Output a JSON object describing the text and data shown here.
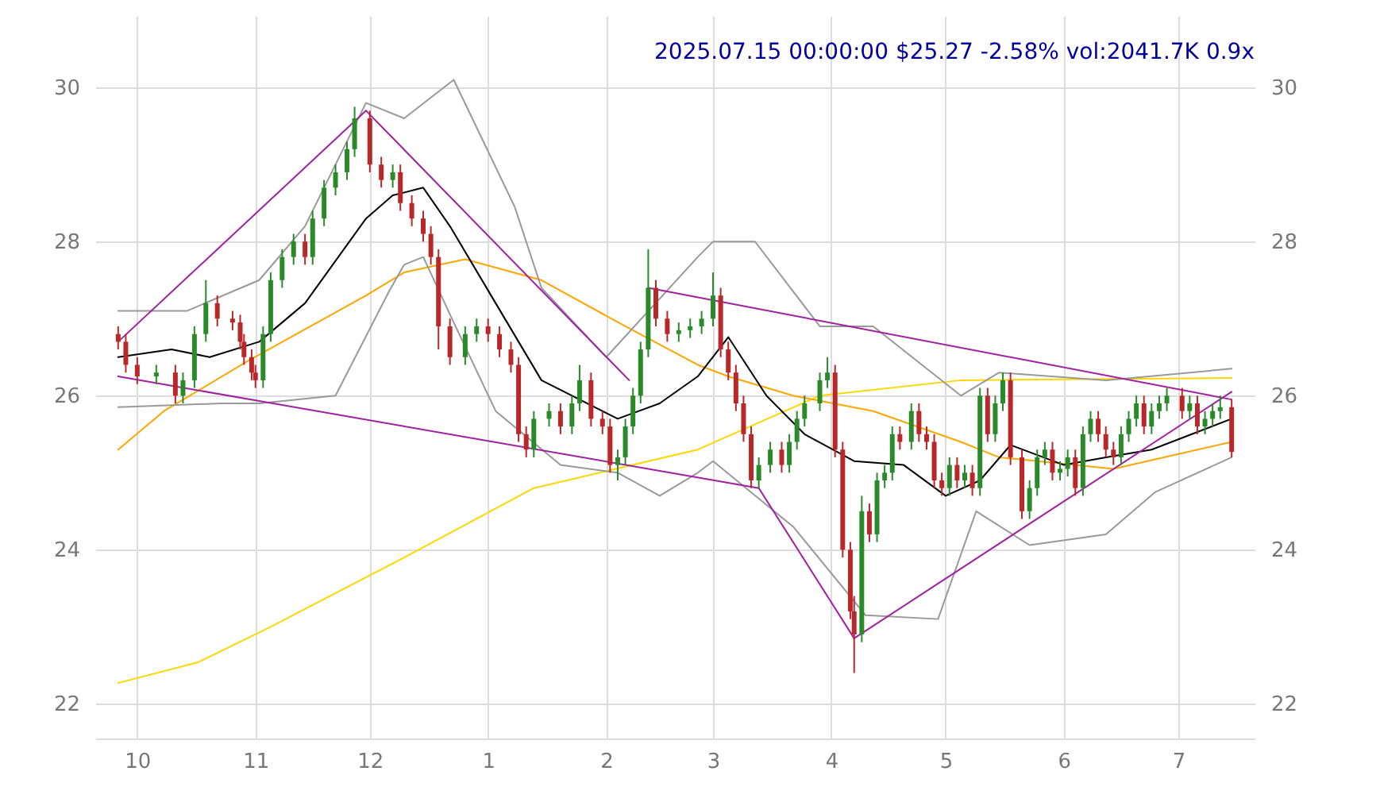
{
  "chart_data": {
    "type": "candlestick",
    "title": "2025.07.15 00:00:00 $25.27 -2.58% vol:2041.7K 0.9x",
    "x": [
      "2024-09-26",
      "2024-09-28",
      "2024-10-01",
      "2024-10-06",
      "2024-10-11",
      "2024-10-13",
      "2024-10-16",
      "2024-10-19",
      "2024-10-22",
      "2024-10-26",
      "2024-10-28",
      "2024-10-29",
      "2024-10-31",
      "2024-11-01",
      "2024-11-03",
      "2024-11-05",
      "2024-11-08",
      "2024-11-11",
      "2024-11-14",
      "2024-11-16",
      "2024-11-19",
      "2024-11-22",
      "2024-11-25",
      "2024-11-27",
      "2024-12-01",
      "2024-12-04",
      "2024-12-07",
      "2024-12-09",
      "2024-12-12",
      "2024-12-15",
      "2024-12-17",
      "2024-12-19",
      "2024-12-22",
      "2024-12-26",
      "2024-12-29",
      "2025-01-01",
      "2025-01-04",
      "2025-01-07",
      "2025-01-09",
      "2025-01-11",
      "2025-01-13",
      "2025-01-17",
      "2025-01-20",
      "2025-01-23",
      "2025-01-25",
      "2025-01-28",
      "2025-01-31",
      "2025-02-02",
      "2025-02-04",
      "2025-02-06",
      "2025-02-08",
      "2025-02-10",
      "2025-02-12",
      "2025-02-14",
      "2025-02-17",
      "2025-02-20",
      "2025-02-23",
      "2025-02-26",
      "2025-03-01",
      "2025-03-03",
      "2025-03-05",
      "2025-03-07",
      "2025-03-09",
      "2025-03-11",
      "2025-03-13",
      "2025-03-16",
      "2025-03-19",
      "2025-03-21",
      "2025-03-23",
      "2025-03-25",
      "2025-03-29",
      "2025-03-31",
      "2025-04-02",
      "2025-04-04",
      "2025-04-06",
      "2025-04-07",
      "2025-04-09",
      "2025-04-11",
      "2025-04-13",
      "2025-04-15",
      "2025-04-17",
      "2025-04-19",
      "2025-04-22",
      "2025-04-24",
      "2025-04-26",
      "2025-04-28",
      "2025-04-30",
      "2025-05-02",
      "2025-05-04",
      "2025-05-06",
      "2025-05-08",
      "2025-05-10",
      "2025-05-12",
      "2025-05-14",
      "2025-05-16",
      "2025-05-18",
      "2025-05-21",
      "2025-05-23",
      "2025-05-25",
      "2025-05-27",
      "2025-05-29",
      "2025-05-31",
      "2025-06-02",
      "2025-06-04",
      "2025-06-06",
      "2025-06-08",
      "2025-06-10",
      "2025-06-12",
      "2025-06-14",
      "2025-06-16",
      "2025-06-18",
      "2025-06-20",
      "2025-06-22",
      "2025-06-24",
      "2025-06-26",
      "2025-06-28",
      "2025-07-02",
      "2025-07-04",
      "2025-07-06",
      "2025-07-08",
      "2025-07-10",
      "2025-07-12",
      "2025-07-15"
    ],
    "ohlc": [
      [
        26.8,
        26.9,
        26.6,
        26.7
      ],
      [
        26.7,
        26.8,
        26.3,
        26.4
      ],
      [
        26.4,
        26.5,
        26.15,
        26.25
      ],
      [
        26.25,
        26.4,
        26.15,
        26.3
      ],
      [
        26.3,
        26.4,
        25.9,
        26.0
      ],
      [
        26.0,
        26.3,
        25.9,
        26.2
      ],
      [
        26.2,
        26.9,
        26.1,
        26.8
      ],
      [
        26.8,
        27.5,
        26.7,
        27.2
      ],
      [
        27.2,
        27.3,
        26.9,
        27.0
      ],
      [
        27.0,
        27.1,
        26.85,
        26.95
      ],
      [
        26.95,
        27.05,
        26.6,
        26.7
      ],
      [
        26.7,
        26.8,
        26.4,
        26.5
      ],
      [
        26.5,
        26.6,
        26.2,
        26.3
      ],
      [
        26.3,
        26.4,
        26.1,
        26.2
      ],
      [
        26.2,
        26.9,
        26.1,
        26.8
      ],
      [
        26.8,
        27.6,
        26.7,
        27.5
      ],
      [
        27.5,
        27.9,
        27.4,
        27.8
      ],
      [
        27.8,
        28.1,
        27.7,
        28.0
      ],
      [
        28.0,
        28.1,
        27.7,
        27.8
      ],
      [
        27.8,
        28.4,
        27.7,
        28.3
      ],
      [
        28.3,
        28.8,
        28.2,
        28.7
      ],
      [
        28.7,
        29.0,
        28.6,
        28.9
      ],
      [
        28.9,
        29.3,
        28.8,
        29.2
      ],
      [
        29.2,
        29.75,
        29.1,
        29.6
      ],
      [
        29.6,
        29.7,
        28.9,
        29.0
      ],
      [
        29.0,
        29.1,
        28.7,
        28.8
      ],
      [
        28.8,
        29.0,
        28.7,
        28.9
      ],
      [
        28.9,
        29.0,
        28.4,
        28.5
      ],
      [
        28.5,
        28.6,
        28.2,
        28.3
      ],
      [
        28.3,
        28.4,
        28.0,
        28.1
      ],
      [
        28.1,
        28.2,
        27.7,
        27.8
      ],
      [
        27.8,
        27.9,
        26.6,
        26.9
      ],
      [
        26.9,
        27.0,
        26.4,
        26.5
      ],
      [
        26.5,
        26.9,
        26.4,
        26.8
      ],
      [
        26.8,
        27.0,
        26.7,
        26.9
      ],
      [
        26.9,
        27.0,
        26.7,
        26.8
      ],
      [
        26.8,
        26.9,
        26.5,
        26.6
      ],
      [
        26.6,
        26.7,
        26.3,
        26.4
      ],
      [
        26.4,
        26.5,
        25.4,
        25.5
      ],
      [
        25.5,
        25.6,
        25.2,
        25.3
      ],
      [
        25.3,
        25.8,
        25.2,
        25.7
      ],
      [
        25.7,
        25.9,
        25.6,
        25.8
      ],
      [
        25.8,
        25.9,
        25.5,
        25.6
      ],
      [
        25.6,
        26.0,
        25.5,
        25.9
      ],
      [
        25.9,
        26.4,
        25.8,
        26.2
      ],
      [
        26.2,
        26.3,
        25.6,
        25.7
      ],
      [
        25.7,
        25.8,
        25.5,
        25.6
      ],
      [
        25.6,
        25.7,
        25.0,
        25.1
      ],
      [
        25.1,
        25.3,
        24.9,
        25.2
      ],
      [
        25.2,
        25.7,
        25.1,
        25.6
      ],
      [
        25.6,
        26.1,
        25.5,
        26.0
      ],
      [
        26.0,
        26.7,
        25.9,
        26.6
      ],
      [
        26.6,
        27.9,
        26.5,
        27.4
      ],
      [
        27.4,
        27.5,
        26.9,
        27.0
      ],
      [
        27.0,
        27.1,
        26.7,
        26.8
      ],
      [
        26.8,
        26.95,
        26.7,
        26.85
      ],
      [
        26.85,
        27.0,
        26.75,
        26.9
      ],
      [
        26.9,
        27.1,
        26.8,
        27.0
      ],
      [
        27.0,
        27.6,
        26.9,
        27.3
      ],
      [
        27.3,
        27.4,
        26.5,
        26.6
      ],
      [
        26.6,
        26.7,
        26.2,
        26.3
      ],
      [
        26.3,
        26.4,
        25.8,
        25.9
      ],
      [
        25.9,
        26.0,
        25.4,
        25.5
      ],
      [
        25.5,
        25.6,
        24.8,
        24.9
      ],
      [
        24.9,
        25.2,
        24.8,
        25.1
      ],
      [
        25.1,
        25.4,
        25.0,
        25.3
      ],
      [
        25.3,
        25.4,
        25.0,
        25.1
      ],
      [
        25.1,
        25.5,
        25.0,
        25.4
      ],
      [
        25.4,
        25.8,
        25.3,
        25.7
      ],
      [
        25.7,
        26.0,
        25.6,
        25.9
      ],
      [
        25.9,
        26.3,
        25.8,
        26.2
      ],
      [
        26.2,
        26.5,
        26.1,
        26.3
      ],
      [
        26.3,
        26.4,
        25.2,
        25.3
      ],
      [
        25.3,
        25.4,
        23.9,
        24.0
      ],
      [
        24.0,
        24.1,
        23.1,
        23.2
      ],
      [
        23.2,
        23.4,
        22.4,
        22.9
      ],
      [
        22.9,
        24.7,
        22.8,
        24.5
      ],
      [
        24.5,
        24.6,
        24.1,
        24.2
      ],
      [
        24.2,
        25.0,
        24.1,
        24.9
      ],
      [
        24.9,
        25.1,
        24.8,
        25.0
      ],
      [
        25.0,
        25.6,
        24.9,
        25.5
      ],
      [
        25.5,
        25.6,
        25.3,
        25.4
      ],
      [
        25.4,
        25.9,
        25.3,
        25.8
      ],
      [
        25.8,
        25.9,
        25.4,
        25.5
      ],
      [
        25.5,
        25.6,
        25.3,
        25.4
      ],
      [
        25.4,
        25.5,
        24.8,
        24.9
      ],
      [
        24.9,
        25.0,
        24.7,
        24.8
      ],
      [
        24.8,
        25.2,
        24.7,
        25.1
      ],
      [
        25.1,
        25.2,
        24.8,
        24.9
      ],
      [
        24.9,
        25.1,
        24.8,
        25.0
      ],
      [
        25.0,
        25.1,
        24.7,
        24.8
      ],
      [
        24.8,
        26.1,
        24.7,
        26.0
      ],
      [
        26.0,
        26.1,
        25.4,
        25.5
      ],
      [
        25.5,
        26.0,
        25.4,
        25.9
      ],
      [
        25.9,
        26.3,
        25.8,
        26.2
      ],
      [
        26.2,
        26.3,
        25.1,
        25.2
      ],
      [
        25.2,
        25.3,
        24.4,
        24.5
      ],
      [
        24.5,
        24.9,
        24.4,
        24.8
      ],
      [
        24.8,
        25.3,
        24.7,
        25.2
      ],
      [
        25.2,
        25.4,
        25.1,
        25.3
      ],
      [
        25.3,
        25.4,
        24.9,
        25.0
      ],
      [
        25.0,
        25.15,
        24.9,
        25.05
      ],
      [
        25.05,
        25.3,
        24.95,
        25.2
      ],
      [
        25.2,
        25.3,
        24.7,
        24.8
      ],
      [
        24.8,
        25.6,
        24.7,
        25.5
      ],
      [
        25.5,
        25.8,
        25.4,
        25.7
      ],
      [
        25.7,
        25.8,
        25.4,
        25.5
      ],
      [
        25.5,
        25.6,
        25.2,
        25.3
      ],
      [
        25.3,
        25.4,
        25.1,
        25.2
      ],
      [
        25.2,
        25.6,
        25.1,
        25.5
      ],
      [
        25.5,
        25.8,
        25.4,
        25.7
      ],
      [
        25.7,
        26.0,
        25.6,
        25.9
      ],
      [
        25.9,
        26.0,
        25.5,
        25.6
      ],
      [
        25.6,
        25.9,
        25.5,
        25.8
      ],
      [
        25.8,
        26.0,
        25.7,
        25.9
      ],
      [
        25.9,
        26.1,
        25.8,
        26.0
      ],
      [
        26.0,
        26.1,
        25.7,
        25.8
      ],
      [
        25.8,
        26.0,
        25.7,
        25.9
      ],
      [
        25.9,
        26.0,
        25.5,
        25.6
      ],
      [
        25.6,
        25.8,
        25.5,
        25.7
      ],
      [
        25.7,
        25.9,
        25.6,
        25.8
      ],
      [
        25.8,
        26.0,
        25.7,
        25.85
      ],
      [
        25.85,
        25.95,
        25.2,
        25.27
      ]
    ],
    "series": [
      {
        "type": "line",
        "color": "#ffd700",
        "x": [
          "2024-09-26",
          "2024-10-17",
          "2024-11-05",
          "2024-12-10",
          "2025-01-13",
          "2025-02-25",
          "2025-03-29",
          "2025-05-05",
          "2025-07-15"
        ],
        "values": [
          22.27,
          22.54,
          23.0,
          23.9,
          24.8,
          25.3,
          26.0,
          26.2,
          26.23
        ]
      },
      {
        "type": "line",
        "color": "#ffa500",
        "x": [
          "2024-09-26",
          "2024-10-08",
          "2024-10-30",
          "2024-11-30",
          "2024-12-10",
          "2024-12-26",
          "2025-01-15",
          "2025-02-06",
          "2025-02-25",
          "2025-03-05",
          "2025-03-22",
          "2025-04-12",
          "2025-05-05",
          "2025-05-15",
          "2025-06-14",
          "2025-07-15"
        ],
        "values": [
          25.3,
          25.8,
          26.45,
          27.3,
          27.6,
          27.77,
          27.5,
          26.9,
          26.4,
          26.25,
          26.0,
          25.8,
          25.4,
          25.2,
          25.05,
          25.4
        ]
      },
      {
        "type": "line",
        "color": "#999999",
        "x": [
          "2024-09-26",
          "2024-10-14",
          "2024-11-02",
          "2024-11-14",
          "2024-11-30",
          "2024-12-10",
          "2024-12-23",
          "2025-01-08",
          "2025-01-15",
          "2025-02-01",
          "2025-02-25",
          "2025-03-01",
          "2025-03-12",
          "2025-03-29",
          "2025-04-12",
          "2025-05-05",
          "2025-05-15",
          "2025-06-12",
          "2025-07-15"
        ],
        "values": [
          27.1,
          27.1,
          27.5,
          28.2,
          29.8,
          29.6,
          30.1,
          28.45,
          27.4,
          26.5,
          27.8,
          28.0,
          28.0,
          26.9,
          26.9,
          26.0,
          26.3,
          26.2,
          26.35
        ]
      },
      {
        "type": "line",
        "color": "#999999",
        "x": [
          "2024-09-26",
          "2024-10-23",
          "2024-11-02",
          "2024-11-22",
          "2024-12-06",
          "2024-12-10",
          "2024-12-15",
          "2024-12-23",
          "2025-01-03",
          "2025-01-20",
          "2025-02-04",
          "2025-02-15",
          "2025-02-25",
          "2025-03-01",
          "2025-03-22",
          "2025-04-10",
          "2025-04-29",
          "2025-05-09",
          "2025-05-23",
          "2025-06-12",
          "2025-06-25",
          "2025-07-15"
        ],
        "values": [
          25.85,
          25.9,
          25.9,
          26.0,
          27.35,
          27.7,
          27.8,
          26.95,
          25.8,
          25.1,
          25.0,
          24.7,
          25.0,
          25.15,
          24.3,
          23.15,
          23.1,
          24.5,
          24.06,
          24.2,
          24.75,
          25.2
        ]
      },
      {
        "type": "line",
        "color": "#000000",
        "x": [
          "2024-09-26",
          "2024-10-10",
          "2024-10-20",
          "2024-11-02",
          "2024-11-14",
          "2024-11-30",
          "2024-12-07",
          "2024-12-15",
          "2024-12-22",
          "2025-01-03",
          "2025-01-15",
          "2025-02-04",
          "2025-02-15",
          "2025-02-25",
          "2025-03-05",
          "2025-03-15",
          "2025-03-25",
          "2025-04-07",
          "2025-04-20",
          "2025-05-01",
          "2025-05-10",
          "2025-05-18",
          "2025-06-01",
          "2025-06-12",
          "2025-06-24",
          "2025-07-15"
        ],
        "values": [
          26.5,
          26.6,
          26.5,
          26.7,
          27.2,
          28.3,
          28.6,
          28.7,
          28.2,
          27.2,
          26.2,
          25.7,
          25.9,
          26.25,
          26.76,
          26.0,
          25.5,
          25.15,
          25.1,
          24.7,
          24.9,
          25.36,
          25.1,
          25.2,
          25.3,
          25.7
        ]
      },
      {
        "type": "line",
        "color": "#a020a0",
        "x": [
          "2024-09-26",
          "2024-11-30"
        ],
        "values": [
          26.7,
          29.7
        ]
      },
      {
        "type": "line",
        "color": "#a020a0",
        "x": [
          "2024-11-30",
          "2025-02-07"
        ],
        "values": [
          29.7,
          26.2
        ]
      },
      {
        "type": "line",
        "color": "#a020a0",
        "x": [
          "2024-09-26",
          "2025-03-13"
        ],
        "values": [
          26.25,
          24.8
        ]
      },
      {
        "type": "line",
        "color": "#a020a0",
        "x": [
          "2025-02-12",
          "2025-07-15"
        ],
        "values": [
          27.4,
          25.95
        ]
      },
      {
        "type": "line",
        "color": "#a020a0",
        "x": [
          "2025-03-13",
          "2025-04-07"
        ],
        "values": [
          24.8,
          22.85
        ]
      },
      {
        "type": "line",
        "color": "#a020a0",
        "x": [
          "2025-04-07",
          "2025-07-15"
        ],
        "values": [
          22.85,
          26.05
        ]
      }
    ],
    "xlim": [
      "2024-09-20",
      "2025-07-21"
    ],
    "xticks": [
      {
        "value": "2024-10-01",
        "label": "10"
      },
      {
        "value": "2024-11-01",
        "label": "11"
      },
      {
        "value": "2024-12-01",
        "label": "12"
      },
      {
        "value": "2025-01-01",
        "label": "1"
      },
      {
        "value": "2025-02-01",
        "label": "2"
      },
      {
        "value": "2025-03-01",
        "label": "3"
      },
      {
        "value": "2025-04-01",
        "label": "4"
      },
      {
        "value": "2025-05-01",
        "label": "5"
      },
      {
        "value": "2025-06-01",
        "label": "6"
      },
      {
        "value": "2025-07-01",
        "label": "7"
      }
    ],
    "ylim": [
      21.55,
      30.93
    ],
    "yticks": [
      22,
      24,
      26,
      28,
      30
    ],
    "y2lim": [
      21.55,
      30.93
    ],
    "y2ticks": [
      22,
      24,
      26,
      28,
      30
    ],
    "grid": true
  }
}
